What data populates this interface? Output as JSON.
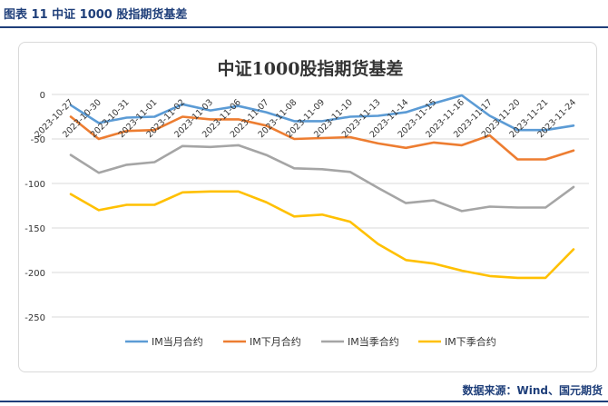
{
  "header": {
    "figure_label": "图表 11  中证 1000 股指期货基差"
  },
  "source": "数据来源：Wind、国元期货",
  "chart_data": {
    "type": "line",
    "title": "中证1000股指期货基差",
    "xlabel": "",
    "ylabel": "",
    "ylim": [
      -250,
      0
    ],
    "yticks": [
      0,
      -50,
      -100,
      -150,
      -200,
      -250
    ],
    "grid": true,
    "legend_position": "bottom",
    "categories": [
      "2023-10-27",
      "2023-10-30",
      "2023-10-31",
      "2023-11-01",
      "2023-11-02",
      "2023-11-03",
      "2023-11-06",
      "2023-11-07",
      "2023-11-08",
      "2023-11-09",
      "2023-11-10",
      "2023-11-13",
      "2023-11-14",
      "2023-11-15",
      "2023-11-16",
      "2023-11-17",
      "2023-11-20",
      "2023-11-21",
      "2023-11-24"
    ],
    "series": [
      {
        "name": "IM当月合约",
        "color": "#5b9bd5",
        "values": [
          -12,
          -32,
          -26,
          -25,
          -11,
          -18,
          -13,
          -20,
          -30,
          -30,
          -25,
          -24,
          -20,
          -10,
          -1,
          -24,
          -40,
          -40,
          -35
        ]
      },
      {
        "name": "IM下月合约",
        "color": "#ed7d31",
        "values": [
          -25,
          -50,
          -41,
          -40,
          -25,
          -28,
          -28,
          -35,
          -50,
          -49,
          -48,
          -55,
          -60,
          -54,
          -57,
          -46,
          -73,
          -73,
          -63
        ]
      },
      {
        "name": "IM当季合约",
        "color": "#a5a5a5",
        "values": [
          -68,
          -88,
          -79,
          -76,
          -58,
          -59,
          -57,
          -68,
          -83,
          -84,
          -87,
          -105,
          -122,
          -119,
          -131,
          -126,
          -127,
          -127,
          -104
        ]
      },
      {
        "name": "IM下季合约",
        "color": "#ffc000",
        "values": [
          -112,
          -130,
          -124,
          -124,
          -110,
          -109,
          -109,
          -121,
          -137,
          -135,
          -143,
          -168,
          -186,
          -190,
          -198,
          -204,
          -206,
          -206,
          -174
        ]
      }
    ]
  }
}
